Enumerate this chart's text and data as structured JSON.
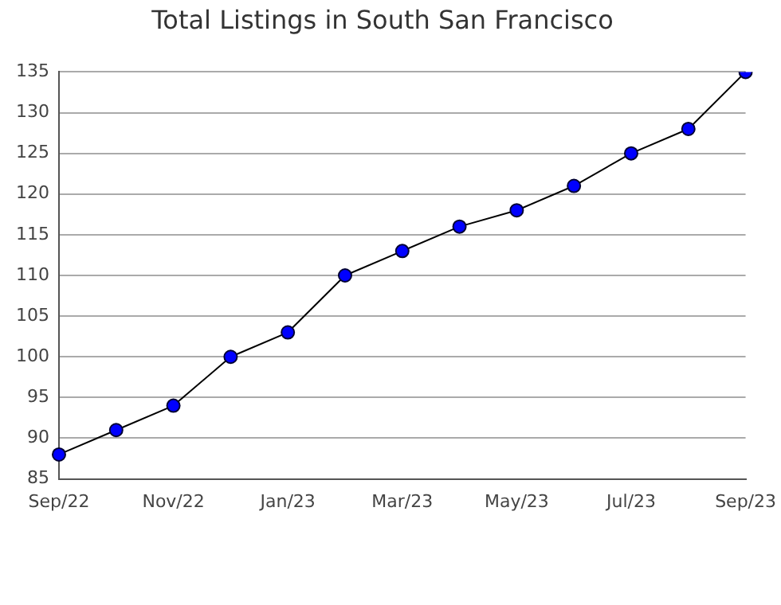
{
  "chart_data": {
    "type": "line",
    "title": "Total Listings in South San Francisco",
    "categories": [
      "Sep/22",
      null,
      "Nov/22",
      null,
      "Jan/23",
      null,
      "Mar/23",
      null,
      "May/23",
      null,
      "Jul/23",
      null,
      "Sep/23"
    ],
    "series": [
      {
        "color": "#0000ff",
        "values": [
          88,
          91,
          94,
          100,
          103,
          110,
          113,
          116,
          118,
          121,
          125,
          128,
          135
        ]
      }
    ],
    "ylim": [
      85,
      135
    ],
    "yticks": [
      85,
      90,
      95,
      100,
      105,
      110,
      115,
      120,
      125,
      130,
      135
    ],
    "grid": "y",
    "legend": false,
    "marker": "circle",
    "line_style": "solid"
  }
}
